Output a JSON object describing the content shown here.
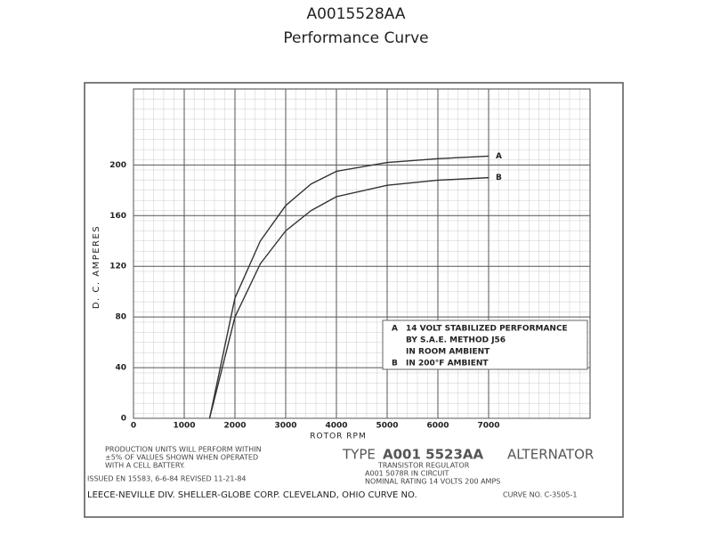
{
  "chart_data": {
    "type": "line",
    "title": "A0015528AA",
    "subtitle": "Performance Curve",
    "x_label": "ROTOR RPM",
    "y_label": "D. C. AMPERES",
    "x": [
      1500,
      2000,
      2500,
      3000,
      3500,
      4000,
      5000,
      6000,
      7000
    ],
    "series": [
      {
        "name": "A",
        "color": "#333333",
        "values": [
          0,
          95,
          140,
          168,
          185,
          195,
          202,
          205,
          207
        ]
      },
      {
        "name": "B",
        "color": "#333333",
        "values": [
          0,
          80,
          122,
          148,
          164,
          175,
          184,
          188,
          190
        ]
      }
    ],
    "xlim": [
      0,
      9000
    ],
    "ylim": [
      0,
      260
    ],
    "xticks": [
      0,
      1000,
      2000,
      3000,
      4000,
      5000,
      6000,
      7000
    ],
    "yticks": [
      0,
      40,
      80,
      120,
      160,
      200
    ],
    "grid": true,
    "legend_notes": [
      "A",
      "14 VOLT STABILIZED PERFORMANCE",
      "BY S.A.E. METHOD J56",
      "IN ROOM AMBIENT",
      "B",
      "IN 200°F AMBIENT"
    ]
  },
  "footer": {
    "production_note": [
      "PRODUCTION UNITS WILL PERFORM WITHIN",
      "±5% OF VALUES SHOWN WHEN OPERATED",
      "WITH A       CELL BATTERY."
    ],
    "issued": "ISSUED EN 15583, 6-6-84  REVISED       11-21-84",
    "type_label": "TYPE",
    "model": "A001 5523AA",
    "product": "ALTERNATOR",
    "regulator": "TRANSISTOR REGULATOR",
    "regulator_model": "A001 5078R  IN CIRCUIT",
    "rating": "NOMINAL RATING   14 VOLTS        200 AMPS",
    "company": "LEECE-NEVILLE DIV. SHELLER-GLOBE CORP. CLEVELAND, OHIO  CURVE NO.",
    "curve_no": "CURVE NO. C-3505-1"
  }
}
